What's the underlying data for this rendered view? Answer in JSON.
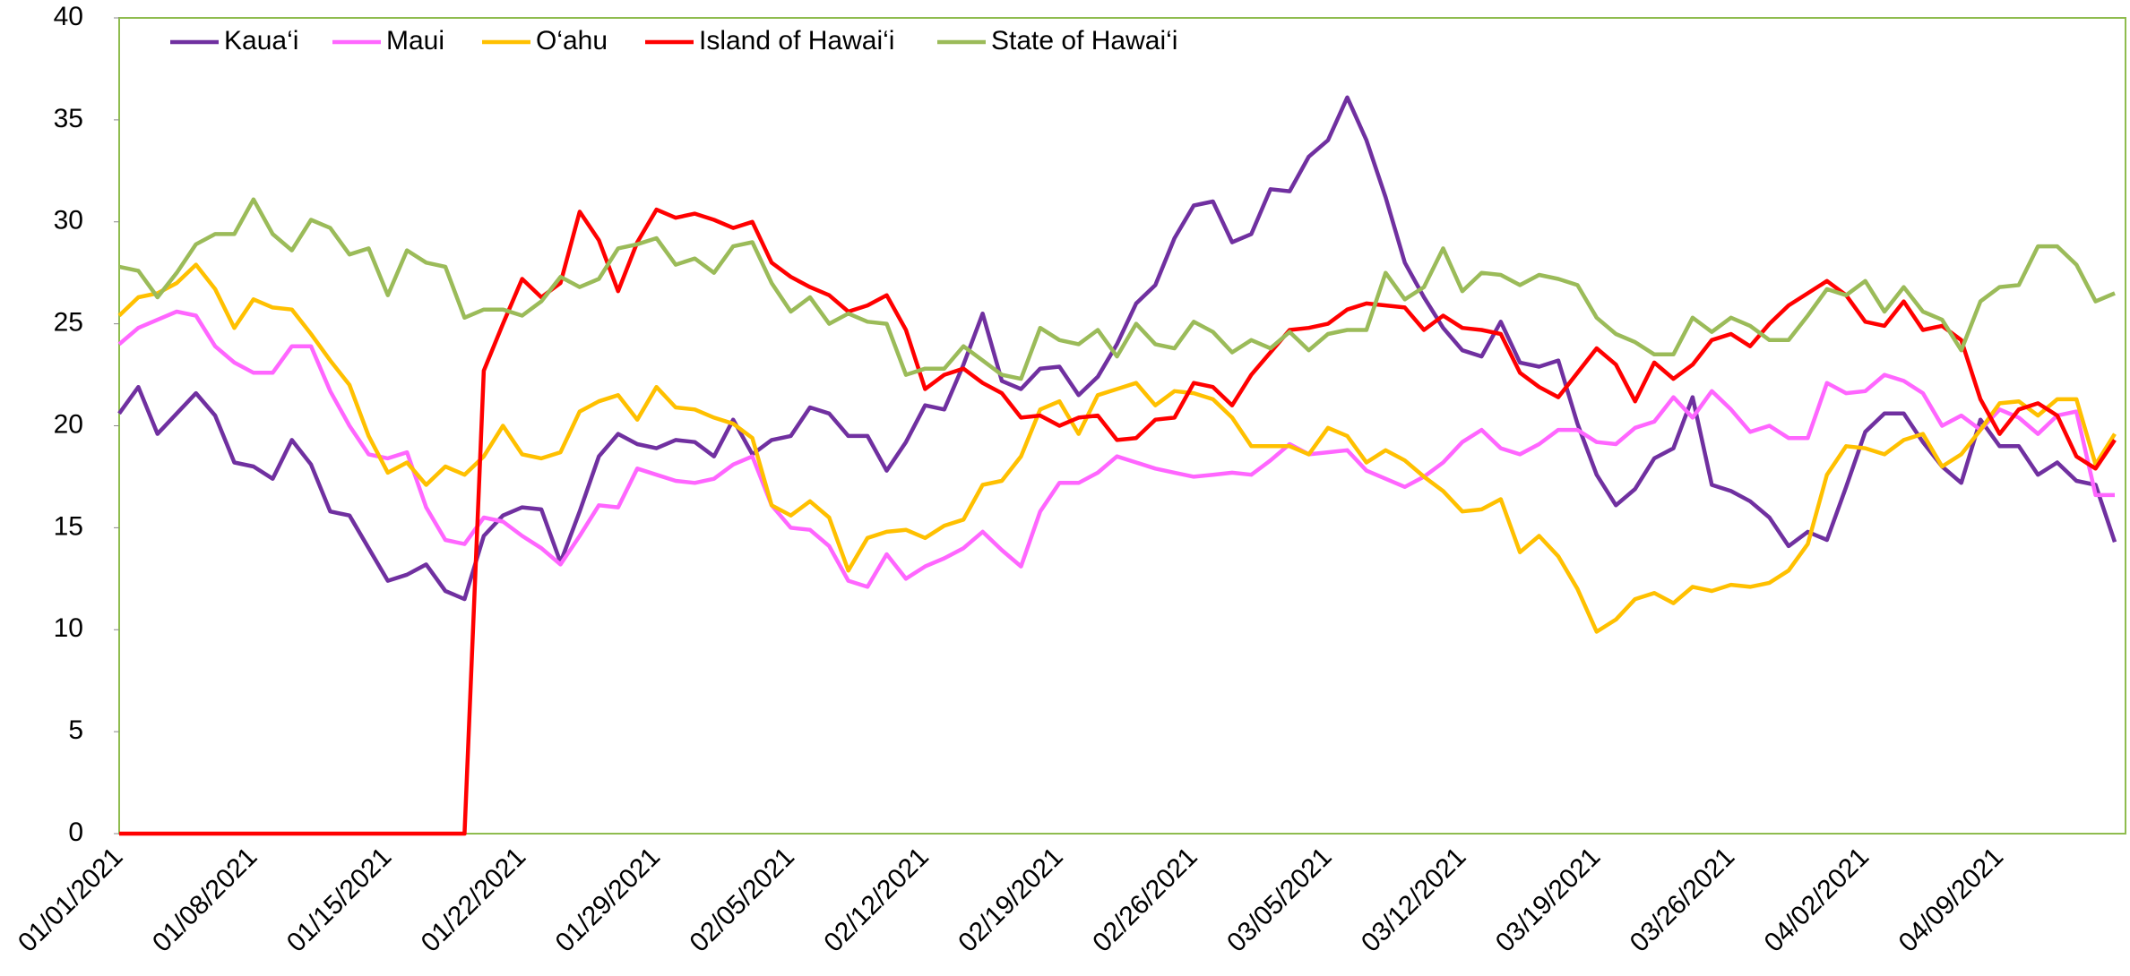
{
  "chart_data": {
    "type": "line",
    "categories": [
      "01/01/2021",
      null,
      null,
      null,
      null,
      null,
      null,
      "01/08/2021",
      null,
      null,
      null,
      null,
      null,
      null,
      "01/15/2021",
      null,
      null,
      null,
      null,
      null,
      null,
      "01/22/2021",
      null,
      null,
      null,
      null,
      null,
      null,
      "01/29/2021",
      null,
      null,
      null,
      null,
      null,
      null,
      "02/05/2021",
      null,
      null,
      null,
      null,
      null,
      null,
      "02/12/2021",
      null,
      null,
      null,
      null,
      null,
      null,
      "02/19/2021",
      null,
      null,
      null,
      null,
      null,
      null,
      "02/26/2021",
      null,
      null,
      null,
      null,
      null,
      null,
      "03/05/2021",
      null,
      null,
      null,
      null,
      null,
      null,
      "03/12/2021",
      null,
      null,
      null,
      null,
      null,
      null,
      "03/19/2021",
      null,
      null,
      null,
      null,
      null,
      null,
      "03/26/2021",
      null,
      null,
      null,
      null,
      null,
      null,
      "04/02/2021",
      null,
      null,
      null,
      null,
      null,
      null,
      "04/09/2021",
      null,
      null,
      null,
      null,
      null,
      null
    ],
    "series": [
      {
        "name": "Kaua‘i",
        "color": "#7030a0",
        "values": [
          20.6,
          21.9,
          19.6,
          20.6,
          21.6,
          20.5,
          18.2,
          18.0,
          17.4,
          19.3,
          18.1,
          15.8,
          15.6,
          14.0,
          12.4,
          12.7,
          13.2,
          11.9,
          11.5,
          14.6,
          15.6,
          16.0,
          15.9,
          13.3,
          15.8,
          18.5,
          19.6,
          19.1,
          18.9,
          19.3,
          19.2,
          18.5,
          20.3,
          18.6,
          19.3,
          19.5,
          20.9,
          20.6,
          19.5,
          19.5,
          17.8,
          19.2,
          21.0,
          20.8,
          23.0,
          25.5,
          22.2,
          21.8,
          22.8,
          22.9,
          21.5,
          22.4,
          24.0,
          26.0,
          26.9,
          29.2,
          30.8,
          31.0,
          29.0,
          29.4,
          31.6,
          31.5,
          33.2,
          34.0,
          36.1,
          34.0,
          31.2,
          28.0,
          26.3,
          24.8,
          23.7,
          23.4,
          25.1,
          23.1,
          22.9,
          23.2,
          20.1,
          17.6,
          16.1,
          16.9,
          18.4,
          18.9,
          21.4,
          17.1,
          16.8,
          16.3,
          15.5,
          14.1,
          14.8,
          14.4,
          17.0,
          19.7,
          20.6,
          20.6,
          19.2,
          18.0,
          17.2,
          20.3,
          19.0,
          19.0,
          17.6,
          18.2,
          17.3,
          17.1,
          14.3
        ]
      },
      {
        "name": "Maui",
        "color": "#ff66ff",
        "values": [
          24.0,
          24.8,
          25.2,
          25.6,
          25.4,
          23.9,
          23.1,
          22.6,
          22.6,
          23.9,
          23.9,
          21.7,
          20.0,
          18.6,
          18.4,
          18.7,
          16.0,
          14.4,
          14.2,
          15.5,
          15.3,
          14.6,
          14.0,
          13.2,
          14.6,
          16.1,
          16.0,
          17.9,
          17.6,
          17.3,
          17.2,
          17.4,
          18.1,
          18.5,
          16.1,
          15.0,
          14.9,
          14.1,
          12.4,
          12.1,
          13.7,
          12.5,
          13.1,
          13.5,
          14.0,
          14.8,
          13.9,
          13.1,
          15.8,
          17.2,
          17.2,
          17.7,
          18.5,
          18.2,
          17.9,
          17.7,
          17.5,
          17.6,
          17.7,
          17.6,
          18.3,
          19.1,
          18.6,
          18.7,
          18.8,
          17.8,
          17.4,
          17.0,
          17.5,
          18.2,
          19.2,
          19.8,
          18.9,
          18.6,
          19.1,
          19.8,
          19.8,
          19.2,
          19.1,
          19.9,
          20.2,
          21.4,
          20.4,
          21.7,
          20.8,
          19.7,
          20.0,
          19.4,
          19.4,
          22.1,
          21.6,
          21.7,
          22.5,
          22.2,
          21.6,
          20.0,
          20.5,
          19.8,
          20.8,
          20.4,
          19.6,
          20.5,
          20.7,
          16.6,
          16.6
        ]
      },
      {
        "name": "O‘ahu",
        "color": "#ffc000",
        "values": [
          25.4,
          26.3,
          26.5,
          27.0,
          27.9,
          26.7,
          24.8,
          26.2,
          25.8,
          25.7,
          24.5,
          23.2,
          22.0,
          19.5,
          17.7,
          18.2,
          17.1,
          18.0,
          17.6,
          18.5,
          20.0,
          18.6,
          18.4,
          18.7,
          20.7,
          21.2,
          21.5,
          20.3,
          21.9,
          20.9,
          20.8,
          20.4,
          20.1,
          19.4,
          16.1,
          15.6,
          16.3,
          15.5,
          12.9,
          14.5,
          14.8,
          14.9,
          14.5,
          15.1,
          15.4,
          17.1,
          17.3,
          18.5,
          20.8,
          21.2,
          19.6,
          21.5,
          21.8,
          22.1,
          21.0,
          21.7,
          21.6,
          21.3,
          20.4,
          19.0,
          19.0,
          19.0,
          18.6,
          19.9,
          19.5,
          18.2,
          18.8,
          18.3,
          17.5,
          16.8,
          15.8,
          15.9,
          16.4,
          13.8,
          14.6,
          13.6,
          12.0,
          9.9,
          10.5,
          11.5,
          11.8,
          11.3,
          12.1,
          11.9,
          12.2,
          12.1,
          12.3,
          12.9,
          14.2,
          17.6,
          19.0,
          18.9,
          18.6,
          19.3,
          19.6,
          18.0,
          18.6,
          19.8,
          21.1,
          21.2,
          20.5,
          21.3,
          21.3,
          18.1,
          19.6
        ]
      },
      {
        "name": "Island of Hawai‘i",
        "color": "#ff0000",
        "values": [
          0,
          0,
          0,
          0,
          0,
          0,
          0,
          0,
          0,
          0,
          0,
          0,
          0,
          0,
          0,
          0,
          0,
          0,
          0,
          22.7,
          25.0,
          27.2,
          26.3,
          27.0,
          30.5,
          29.1,
          26.6,
          29.0,
          30.6,
          30.2,
          30.4,
          30.1,
          29.7,
          30.0,
          28.0,
          27.3,
          26.8,
          26.4,
          25.6,
          25.9,
          26.4,
          24.7,
          21.8,
          22.5,
          22.8,
          22.1,
          21.6,
          20.4,
          20.5,
          20.0,
          20.4,
          20.5,
          19.3,
          19.4,
          20.3,
          20.4,
          22.1,
          21.9,
          21.0,
          22.5,
          23.6,
          24.7,
          24.8,
          25.0,
          25.7,
          26.0,
          25.9,
          25.8,
          24.7,
          25.4,
          24.8,
          24.7,
          24.5,
          22.6,
          21.9,
          21.4,
          22.6,
          23.8,
          23.0,
          21.2,
          23.1,
          22.3,
          23.0,
          24.2,
          24.5,
          23.9,
          25.0,
          25.9,
          26.5,
          27.1,
          26.4,
          25.1,
          24.9,
          26.1,
          24.7,
          24.9,
          24.2,
          21.3,
          19.6,
          20.8,
          21.1,
          20.5,
          18.5,
          17.9,
          19.3
        ]
      },
      {
        "name": "State of Hawai‘i",
        "color": "#9bbb59",
        "values": [
          27.8,
          27.6,
          26.3,
          27.5,
          28.9,
          29.4,
          29.4,
          31.1,
          29.4,
          28.6,
          30.1,
          29.7,
          28.4,
          28.7,
          26.4,
          28.6,
          28.0,
          27.8,
          25.3,
          25.7,
          25.7,
          25.4,
          26.1,
          27.3,
          26.8,
          27.2,
          28.7,
          28.9,
          29.2,
          27.9,
          28.2,
          27.5,
          28.8,
          29.0,
          27.0,
          25.6,
          26.3,
          25.0,
          25.5,
          25.1,
          25.0,
          22.5,
          22.8,
          22.8,
          23.9,
          23.2,
          22.5,
          22.3,
          24.8,
          24.2,
          24.0,
          24.7,
          23.4,
          25.0,
          24.0,
          23.8,
          25.1,
          24.6,
          23.6,
          24.2,
          23.8,
          24.6,
          23.7,
          24.5,
          24.7,
          24.7,
          27.5,
          26.2,
          26.8,
          28.7,
          26.6,
          27.5,
          27.4,
          26.9,
          27.4,
          27.2,
          26.9,
          25.3,
          24.5,
          24.1,
          23.5,
          23.5,
          25.3,
          24.6,
          25.3,
          24.9,
          24.2,
          24.2,
          25.4,
          26.7,
          26.4,
          27.1,
          25.6,
          26.8,
          25.6,
          25.2,
          23.7,
          26.1,
          26.8,
          26.9,
          28.8,
          28.8,
          27.9,
          26.1,
          26.5
        ]
      }
    ],
    "ylim": [
      0,
      40
    ],
    "yticks": [
      0,
      5,
      10,
      15,
      20,
      25,
      30,
      35,
      40
    ],
    "grid": false,
    "legend": "top-left"
  }
}
